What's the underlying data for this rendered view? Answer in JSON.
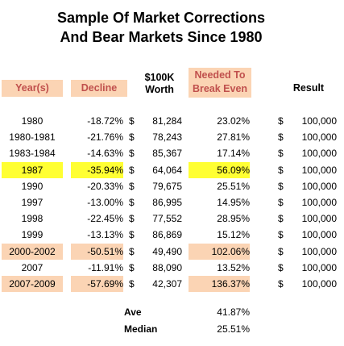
{
  "title_line1": "Sample Of Market Corrections",
  "title_line2": "And Bear Markets Since 1980",
  "headers": {
    "years": "Year(s)",
    "decline": "Decline",
    "worth_line1": "$100K",
    "worth_line2": "Worth",
    "needed_line1": "Needed To",
    "needed_line2": "Break Even",
    "result": "Result"
  },
  "currency_symbol": "$",
  "rows": [
    {
      "years": "1980",
      "decline": "-18.72%",
      "worth": "81,284",
      "needed": "23.02%",
      "result": "100,000",
      "highlight": "none"
    },
    {
      "years": "1980-1981",
      "decline": "-21.76%",
      "worth": "78,243",
      "needed": "27.81%",
      "result": "100,000",
      "highlight": "none"
    },
    {
      "years": "1983-1984",
      "decline": "-14.63%",
      "worth": "85,367",
      "needed": "17.14%",
      "result": "100,000",
      "highlight": "none"
    },
    {
      "years": "1987",
      "decline": "-35.94%",
      "worth": "64,064",
      "needed": "56.09%",
      "result": "100,000",
      "highlight": "yellow"
    },
    {
      "years": "1990",
      "decline": "-20.33%",
      "worth": "79,675",
      "needed": "25.51%",
      "result": "100,000",
      "highlight": "none"
    },
    {
      "years": "1997",
      "decline": "-13.00%",
      "worth": "86,995",
      "needed": "14.95%",
      "result": "100,000",
      "highlight": "none"
    },
    {
      "years": "1998",
      "decline": "-22.45%",
      "worth": "77,552",
      "needed": "28.95%",
      "result": "100,000",
      "highlight": "none"
    },
    {
      "years": "1999",
      "decline": "-13.13%",
      "worth": "86,869",
      "needed": "15.12%",
      "result": "100,000",
      "highlight": "none"
    },
    {
      "years": "2000-2002",
      "decline": "-50.51%",
      "worth": "49,490",
      "needed": "102.06%",
      "result": "100,000",
      "highlight": "peach"
    },
    {
      "years": "2007",
      "decline": "-11.91%",
      "worth": "88,090",
      "needed": "13.52%",
      "result": "100,000",
      "highlight": "none"
    },
    {
      "years": "2007-2009",
      "decline": "-57.69%",
      "worth": "42,307",
      "needed": "136.37%",
      "result": "100,000",
      "highlight": "peach"
    }
  ],
  "stats": {
    "ave_label": "Ave",
    "ave_value": "41.87%",
    "median_label": "Median",
    "median_value": "25.51%"
  },
  "colors": {
    "header_text_red": "#c0504d",
    "header_bg_peach": "#fbd4b4",
    "highlight_yellow": "#ffff33",
    "highlight_peach": "#fbd4b4"
  }
}
